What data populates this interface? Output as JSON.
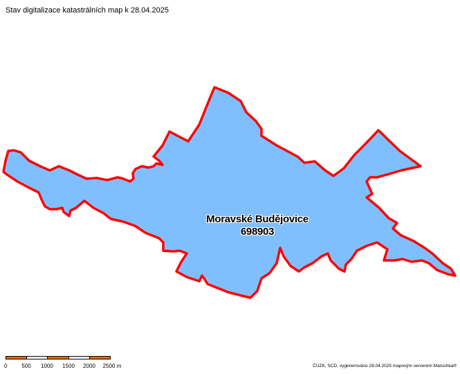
{
  "title": "Stav digitalizace katastrálních map k 28.04.2025",
  "area": {
    "name": "Moravské Budějovice",
    "code": "698903",
    "fill_color": "#80bfff",
    "border_color": "#ff0000"
  },
  "scale": {
    "ticks": [
      "0",
      "500",
      "1000",
      "1500",
      "2000",
      "2500 m"
    ],
    "segment_colors": [
      "#e0700f",
      "#ffffff",
      "#e0700f",
      "#ffffff",
      "#e0700f"
    ]
  },
  "attribution": "ČÚZK, SCD, vygenerováno 28.04.2025 mapovým serverem Marushka®"
}
